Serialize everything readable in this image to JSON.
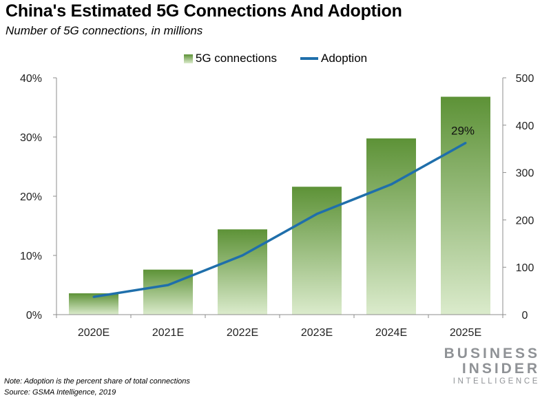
{
  "header": {
    "title": "China's Estimated 5G Connections And Adoption",
    "subtitle": "Number of 5G connections, in millions"
  },
  "colors": {
    "bar_top": "#5d9237",
    "bar_bottom": "#dbebcc",
    "line": "#1f6fab",
    "axis": "#8c8c8c",
    "brand": "#8f9296"
  },
  "chart_data": {
    "type": "bar",
    "categories": [
      "2020E",
      "2021E",
      "2022E",
      "2023E",
      "2024E",
      "2025E"
    ],
    "series": [
      {
        "name": "5G connections",
        "type": "bar",
        "axis": "right",
        "values": [
          45,
          95,
          180,
          270,
          372,
          460
        ]
      },
      {
        "name": "Adoption",
        "type": "line",
        "axis": "left",
        "values": [
          3,
          5,
          10,
          17,
          22,
          29
        ]
      }
    ],
    "y_left": {
      "ticks": [
        "0%",
        "10%",
        "20%",
        "30%",
        "40%"
      ],
      "lim": [
        0,
        40
      ]
    },
    "y_right": {
      "ticks": [
        "0",
        "100",
        "200",
        "300",
        "400",
        "500"
      ],
      "lim": [
        0,
        500
      ]
    },
    "annotations": [
      {
        "category": "2025E",
        "text": "29%"
      }
    ],
    "legend": "top-center",
    "grid": false
  },
  "footer": {
    "note": "Note: Adoption is the percent share of total connections",
    "source": "Source: GSMA Intelligence, 2019",
    "brand": [
      "BUSINESS",
      "INSIDER",
      "INTELLIGENCE"
    ]
  }
}
